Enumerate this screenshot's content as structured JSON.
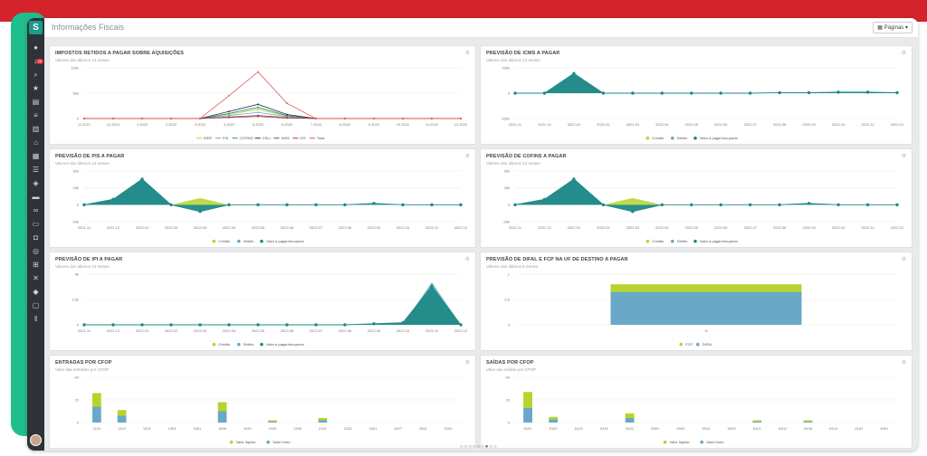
{
  "page": {
    "title": "Informações Fiscais",
    "pages_button": "Páginas",
    "notif_count": "28",
    "colors": {
      "sidebar": "#2d3338",
      "lime": "#b6d42b",
      "blue": "#6aa8c7",
      "teal": "#1f8a86",
      "red": "#e35b5b"
    }
  },
  "sidebar": {
    "logo": "S",
    "icons": [
      "avatar-icon",
      "bell-icon",
      "search-icon",
      "star-icon",
      "dashboard-icon",
      "layers-icon",
      "building-icon",
      "home-icon",
      "chart-icon",
      "list-icon",
      "shield-icon",
      "truck-icon",
      "handshake-icon",
      "wallet-icon",
      "bag-icon",
      "target-icon",
      "cart-icon",
      "close-x-icon",
      "diamond-icon",
      "monitor-icon",
      "pause-icon"
    ]
  },
  "charts": [
    {
      "title": "IMPOSTOS RETIDOS A PAGAR SOBRE AQUISIÇÕES",
      "subtitle": "Valores dos últimos 13 meses",
      "chart_data": {
        "type": "line",
        "categories": [
          "11.2021",
          "12.2021",
          "1.2022",
          "2.2022",
          "3.2022",
          "4.2022",
          "5.2022",
          "6.2022",
          "7.2022",
          "8.2022",
          "9.2022",
          "10.2022",
          "11.2022",
          "12.2022"
        ],
        "yticks": [
          "100k",
          "50k",
          "0"
        ],
        "ylim": [
          0,
          100
        ],
        "series": [
          {
            "name": "IRRF",
            "color": "#b6d42b",
            "values": [
              0,
              0,
              0,
              0,
              0,
              8,
              18,
              5,
              0,
              0,
              0,
              0,
              0,
              0
            ]
          },
          {
            "name": "PIS",
            "color": "#6aa8c7",
            "values": [
              0,
              0,
              0,
              0,
              0,
              6,
              12,
              4,
              0,
              0,
              0,
              0,
              0,
              0
            ]
          },
          {
            "name": "COFINS",
            "color": "#1f8a86",
            "values": [
              0,
              0,
              0,
              0,
              0,
              10,
              22,
              6,
              0,
              0,
              0,
              0,
              0,
              0
            ]
          },
          {
            "name": "CSLL",
            "color": "#2d3338",
            "values": [
              0,
              0,
              0,
              0,
              0,
              14,
              28,
              8,
              0,
              0,
              0,
              0,
              0,
              0
            ]
          },
          {
            "name": "INSS",
            "color": "#7b3f8c",
            "values": [
              0,
              0,
              0,
              0,
              0,
              3,
              6,
              2,
              0,
              0,
              0,
              0,
              0,
              0
            ]
          },
          {
            "name": "ISS",
            "color": "#c0392b",
            "values": [
              0,
              0,
              0,
              0,
              0,
              2,
              4,
              1,
              0,
              0,
              0,
              0,
              0,
              0
            ]
          },
          {
            "name": "Total",
            "color": "#e35b5b",
            "values": [
              0,
              0,
              0,
              0,
              0,
              45,
              92,
              30,
              0,
              0,
              0,
              0,
              0,
              0
            ]
          }
        ]
      }
    },
    {
      "title": "PREVISÃO DE ICMS A PAGAR",
      "subtitle": "Valores dos últimos 13 meses",
      "chart_data": {
        "type": "area",
        "categories": [
          "2021.11",
          "2021.12",
          "2022.01",
          "2022.02",
          "2022.03",
          "2022.04",
          "2022.05",
          "2022.06",
          "2022.07",
          "2022.08",
          "2022.09",
          "2022.10",
          "2022.11",
          "2022.12"
        ],
        "yticks": [
          "250k",
          "0",
          "-250k"
        ],
        "ylim": [
          -250,
          250
        ],
        "series": [
          {
            "name": "Crédito",
            "color": "#b6d42b",
            "values": [
              0,
              0,
              0,
              0,
              0,
              0,
              0,
              0,
              0,
              0,
              0,
              0,
              0,
              0
            ]
          },
          {
            "name": "Débito",
            "color": "#6aa8c7",
            "values": [
              0,
              0,
              200,
              0,
              0,
              0,
              0,
              0,
              0,
              0,
              0,
              0,
              0,
              0
            ]
          },
          {
            "name": "Valor a pagar/recuperar",
            "color": "#1f8a86",
            "values": [
              0,
              0,
              195,
              0,
              0,
              0,
              0,
              0,
              0,
              5,
              5,
              10,
              10,
              5
            ]
          }
        ]
      }
    },
    {
      "title": "PREVISÃO DE PIS A PAGAR",
      "subtitle": "Valores dos últimos 13 meses",
      "chart_data": {
        "type": "area",
        "categories": [
          "2021.11",
          "2021.12",
          "2022.01",
          "2022.02",
          "2022.03",
          "2022.04",
          "2022.05",
          "2022.06",
          "2022.07",
          "2022.08",
          "2022.09",
          "2022.10",
          "2022.11",
          "2022.12"
        ],
        "yticks": [
          "50k",
          "25k",
          "0",
          "-25k"
        ],
        "ylim": [
          -25,
          50
        ],
        "series": [
          {
            "name": "Crédito",
            "color": "#b6d42b",
            "values": [
              0,
              0,
              0,
              0,
              10,
              0,
              0,
              0,
              0,
              0,
              0,
              0,
              0,
              0
            ]
          },
          {
            "name": "Débito",
            "color": "#6aa8c7",
            "values": [
              0,
              8,
              38,
              0,
              0,
              0,
              0,
              0,
              0,
              0,
              0,
              0,
              0,
              0
            ]
          },
          {
            "name": "Valor a pagar/recuperar",
            "color": "#1f8a86",
            "values": [
              0,
              8,
              38,
              0,
              -10,
              0,
              0,
              0,
              0,
              0,
              2,
              0,
              0,
              0
            ]
          }
        ]
      }
    },
    {
      "title": "PREVISÃO DE COFINS A PAGAR",
      "subtitle": "Valores dos últimos 13 meses",
      "chart_data": {
        "type": "area",
        "categories": [
          "2021.11",
          "2021.12",
          "2022.01",
          "2022.02",
          "2022.03",
          "2022.04",
          "2022.05",
          "2022.06",
          "2022.07",
          "2022.08",
          "2022.09",
          "2022.10",
          "2022.11",
          "2022.12"
        ],
        "yticks": [
          "50k",
          "25k",
          "0",
          "-25k"
        ],
        "ylim": [
          -25,
          50
        ],
        "series": [
          {
            "name": "Crédito",
            "color": "#b6d42b",
            "values": [
              0,
              0,
              0,
              0,
              10,
              0,
              0,
              0,
              0,
              0,
              0,
              0,
              0,
              0
            ]
          },
          {
            "name": "Débito",
            "color": "#6aa8c7",
            "values": [
              0,
              8,
              38,
              0,
              0,
              0,
              0,
              0,
              0,
              0,
              0,
              0,
              0,
              0
            ]
          },
          {
            "name": "Valor a pagar/recuperar",
            "color": "#1f8a86",
            "values": [
              0,
              8,
              38,
              0,
              -10,
              0,
              0,
              0,
              0,
              0,
              2,
              0,
              0,
              0
            ]
          }
        ]
      }
    },
    {
      "title": "PREVISÃO DE IPI A PAGAR",
      "subtitle": "Valores dos últimos 13 meses",
      "chart_data": {
        "type": "area",
        "categories": [
          "2021.11",
          "2021.12",
          "2022.01",
          "2022.02",
          "2022.03",
          "2022.04",
          "2022.05",
          "2022.06",
          "2022.07",
          "2022.08",
          "2022.09",
          "2022.10",
          "2022.11",
          "2022.12"
        ],
        "yticks": [
          "5k",
          "2,5k",
          "0"
        ],
        "ylim": [
          0,
          5
        ],
        "series": [
          {
            "name": "Crédito",
            "color": "#b6d42b",
            "values": [
              0,
              0,
              0,
              0,
              0,
              0,
              0,
              0,
              0,
              0,
              0,
              0,
              0,
              0
            ]
          },
          {
            "name": "Débito",
            "color": "#6aa8c7",
            "values": [
              0,
              0,
              0,
              0,
              0,
              0,
              0,
              0,
              0,
              0,
              0,
              0,
              4.2,
              0
            ]
          },
          {
            "name": "Valor a pagar/recuperar",
            "color": "#1f8a86",
            "values": [
              0,
              0,
              0,
              0,
              0,
              0,
              0,
              0,
              0,
              0,
              0.1,
              0.2,
              3.8,
              0
            ]
          }
        ]
      }
    },
    {
      "title": "PREVISÃO DE DIFAL E FCP NA UF DE DESTINO A PAGAR",
      "subtitle": "Valores dos últimos 6 meses",
      "chart_data": {
        "type": "bar",
        "categories": [
          "%"
        ],
        "yticks": [
          "1",
          "0,5",
          "0"
        ],
        "ylim": [
          0,
          1
        ],
        "series": [
          {
            "name": "FCP",
            "color": "#b6d42b",
            "values": [
              0.15
            ]
          },
          {
            "name": "DIFAL",
            "color": "#6aa8c7",
            "values": [
              0.65
            ]
          }
        ]
      }
    },
    {
      "title": "ENTRADAS POR CFOP",
      "subtitle": "Valor das entradas por CFOP",
      "chart_data": {
        "type": "bar",
        "categories": [
          "1101",
          "1102",
          "1201",
          "1353",
          "1551",
          "1556",
          "1910",
          "1933",
          "1949",
          "2101",
          "2102",
          "2401",
          "2407",
          "2551",
          "3102"
        ],
        "yticks": [
          "40",
          "20",
          "0"
        ],
        "ylim": [
          0,
          40
        ],
        "series": [
          {
            "name": "Valor líquido",
            "color": "#b6d42b",
            "values": [
              12,
              5,
              0,
              0,
              0,
              8,
              0,
              1,
              0,
              2,
              0,
              0,
              0,
              0,
              0
            ]
          },
          {
            "name": "Valor bruto",
            "color": "#6aa8c7",
            "values": [
              14,
              6,
              0,
              0,
              0,
              10,
              0,
              1,
              0,
              2,
              0,
              0,
              0,
              0,
              0
            ]
          }
        ]
      }
    },
    {
      "title": "SAÍDAS POR CFOP",
      "subtitle": "Valor das saídas por CFOP",
      "chart_data": {
        "type": "bar",
        "categories": [
          "5101",
          "5102",
          "5124",
          "5152",
          "5401",
          "5551",
          "5904",
          "5910",
          "5929",
          "6101",
          "6102",
          "6108",
          "6124",
          "6152",
          "6401"
        ],
        "yticks": [
          "40",
          "20",
          "0"
        ],
        "ylim": [
          0,
          40
        ],
        "series": [
          {
            "name": "Valor líquido",
            "color": "#b6d42b",
            "values": [
              14,
              2,
              0,
              0,
              4,
              0,
              0,
              0,
              0,
              1,
              0,
              1,
              0,
              0,
              0
            ]
          },
          {
            "name": "Valor bruto",
            "color": "#6aa8c7",
            "values": [
              13,
              3,
              0,
              0,
              4,
              0,
              0,
              0,
              0,
              1,
              0,
              1,
              0,
              0,
              0
            ]
          }
        ]
      }
    }
  ]
}
